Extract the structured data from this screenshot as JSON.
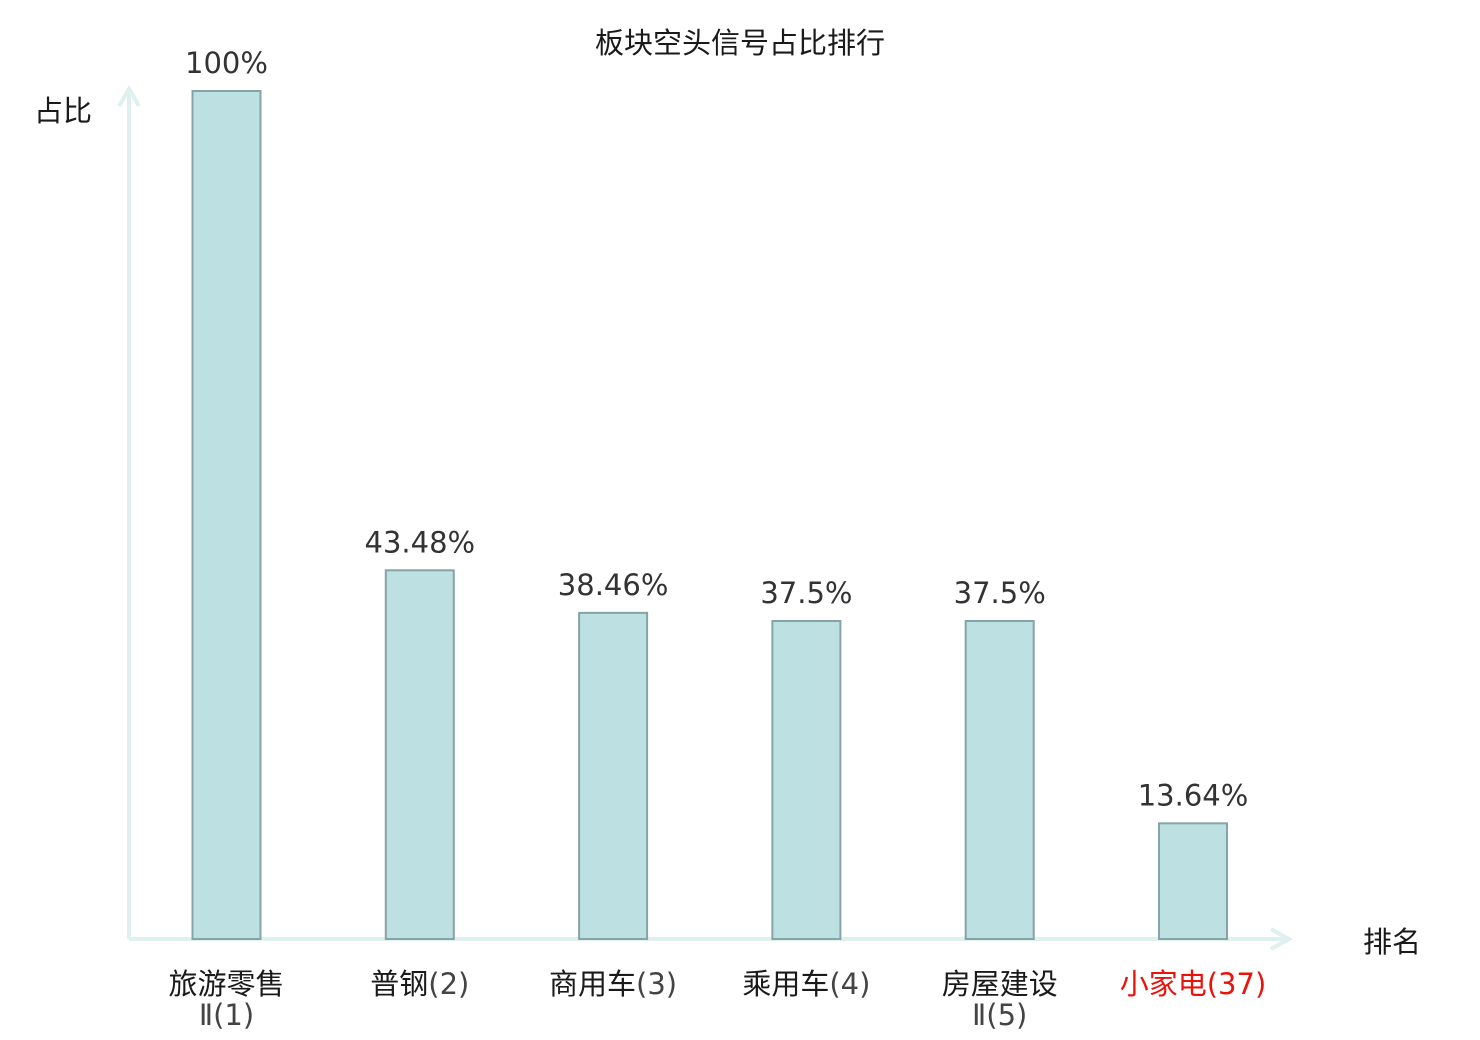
{
  "chart_data": {
    "type": "bar",
    "title": "板块空头信号占比排行",
    "ylabel": "占比",
    "xlabel": "排名",
    "unit": "%",
    "ylim": [
      0,
      100
    ],
    "grid": false,
    "highlight_color": "#e8140c",
    "bar_fill": "#bde0e3",
    "bar_stroke": "#86a3a6",
    "axis_color": "#dff1ef",
    "text_color": "#333333",
    "categories": [
      {
        "name": "旅游零售",
        "rank_line": "Ⅱ(1)",
        "rank": "",
        "highlight": false
      },
      {
        "name": "普钢",
        "rank_line": "",
        "rank": "(2)",
        "highlight": false
      },
      {
        "name": "商用车",
        "rank_line": "",
        "rank": "(3)",
        "highlight": false
      },
      {
        "name": "乘用车",
        "rank_line": "",
        "rank": "(4)",
        "highlight": false
      },
      {
        "name": "房屋建设",
        "rank_line": "Ⅱ(5)",
        "rank": "",
        "highlight": false
      },
      {
        "name": "小家电",
        "rank_line": "",
        "rank": "(37)",
        "highlight": true
      }
    ],
    "values": [
      100,
      43.48,
      38.46,
      37.5,
      37.5,
      13.64
    ],
    "value_labels": [
      "100%",
      "43.48%",
      "38.46%",
      "37.5%",
      "37.5%",
      "13.64%"
    ]
  }
}
